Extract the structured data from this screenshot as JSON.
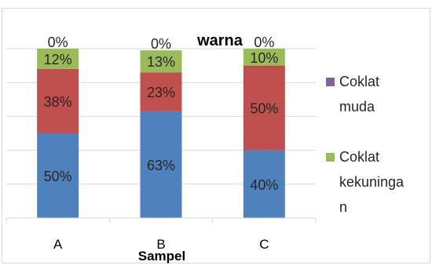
{
  "chart_data": {
    "type": "bar",
    "stacked": true,
    "percent": true,
    "title": "warna",
    "xlabel": "Sampel",
    "ylabel": "",
    "categories": [
      "A",
      "B",
      "C"
    ],
    "ylim": [
      0,
      100
    ],
    "grid": true,
    "legend_position": "right",
    "series": [
      {
        "values": [
          50,
          63,
          40
        ],
        "labels": [
          "50%",
          "63%",
          "40%"
        ],
        "color": "#4f81bd"
      },
      {
        "values": [
          38,
          23,
          50
        ],
        "labels": [
          "38%",
          "23%",
          "50%"
        ],
        "color": "#c0504d"
      },
      {
        "name": "Coklat kekuningan",
        "values": [
          12,
          13,
          10
        ],
        "labels": [
          "12%",
          "13%",
          "10%"
        ],
        "color": "#9bbb59"
      },
      {
        "name": "Coklat muda",
        "values": [
          0,
          0,
          0
        ],
        "labels": [
          "0%",
          "0%",
          "0%"
        ],
        "color": "#8064a2"
      }
    ],
    "legend": [
      {
        "series_index": 3,
        "lines": [
          "Coklat",
          "muda"
        ]
      },
      {
        "series_index": 2,
        "lines": [
          "Coklat",
          "kekuningan"
        ]
      }
    ]
  }
}
